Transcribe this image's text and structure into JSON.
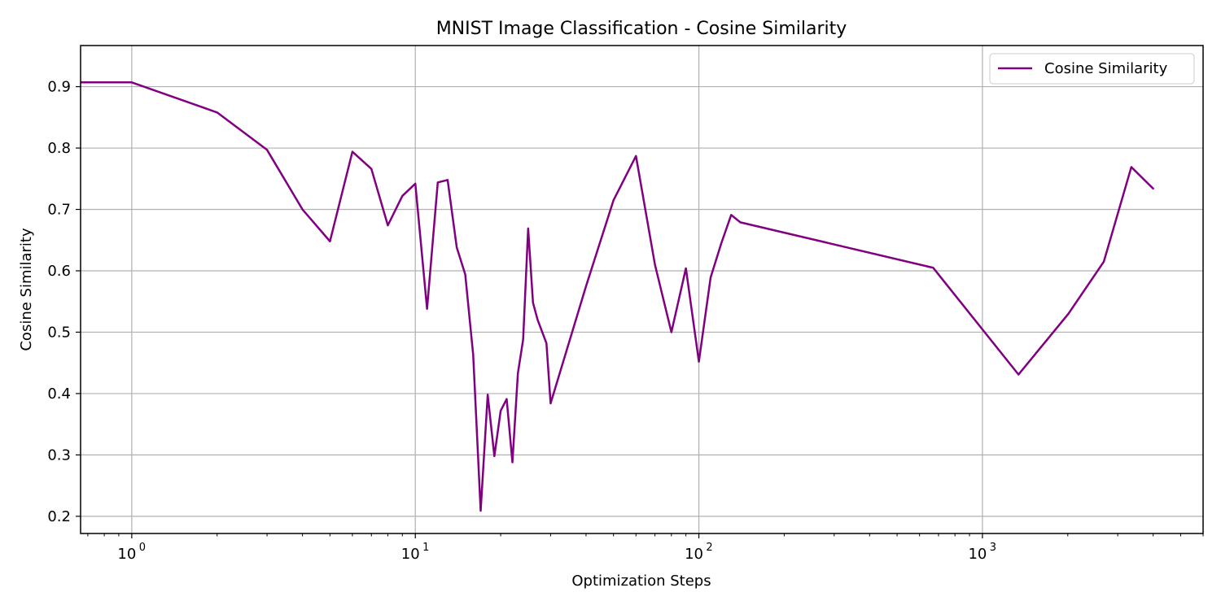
{
  "chart_data": {
    "type": "line",
    "title": "MNIST Image Classification - Cosine Similarity",
    "xlabel": "Optimization Steps",
    "ylabel": "Cosine Similarity",
    "xscale": "log",
    "xlim": [
      0.66,
      6000
    ],
    "ylim": [
      0.172,
      0.967
    ],
    "x_ticks": [
      {
        "value": 1,
        "base": "10",
        "exp": "0"
      },
      {
        "value": 10,
        "base": "10",
        "exp": "1"
      },
      {
        "value": 100,
        "base": "10",
        "exp": "2"
      },
      {
        "value": 1000,
        "base": "10",
        "exp": "3"
      }
    ],
    "y_ticks": [
      0.2,
      0.3,
      0.4,
      0.5,
      0.6,
      0.7,
      0.8,
      0.9
    ],
    "y_tick_labels": [
      "0.2",
      "0.3",
      "0.4",
      "0.5",
      "0.6",
      "0.7",
      "0.8",
      "0.9"
    ],
    "grid": true,
    "legend_position": "top-right",
    "series": [
      {
        "name": "Cosine Similarity",
        "color": "#800080",
        "x": [
          0,
          1,
          2,
          3,
          4,
          5,
          6,
          7,
          8,
          9,
          10,
          11,
          12,
          13,
          14,
          15,
          16,
          17,
          18,
          19,
          20,
          21,
          22,
          23,
          24,
          25,
          26,
          27,
          29,
          30,
          40,
          50,
          60,
          70,
          80,
          90,
          100,
          110,
          120,
          130,
          140,
          670,
          1340,
          2010,
          2680,
          3350,
          4020
        ],
        "y": [
          0.907,
          0.907,
          0.858,
          0.797,
          0.7,
          0.648,
          0.794,
          0.766,
          0.674,
          0.722,
          0.742,
          0.538,
          0.744,
          0.748,
          0.638,
          0.594,
          0.463,
          0.209,
          0.398,
          0.298,
          0.372,
          0.391,
          0.288,
          0.433,
          0.488,
          0.669,
          0.548,
          0.52,
          0.482,
          0.384,
          0.575,
          0.715,
          0.787,
          0.61,
          0.5,
          0.604,
          0.452,
          0.589,
          0.645,
          0.691,
          0.679,
          0.605,
          0.431,
          0.53,
          0.615,
          0.769,
          0.733
        ]
      }
    ]
  }
}
